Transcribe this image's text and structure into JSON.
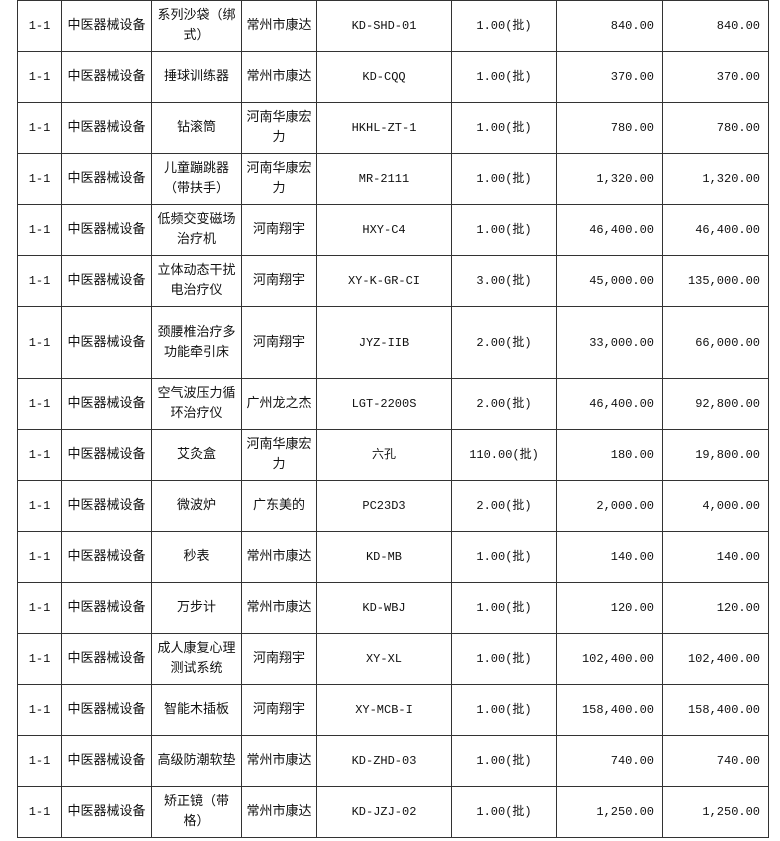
{
  "rows": [
    {
      "code": "1-1",
      "category": "中医器械设备",
      "name": "系列沙袋（绑式）",
      "brand": "常州市康达",
      "model": "KD-SHD-01",
      "qty": "1.00(批)",
      "price": "840.00",
      "total": "840.00"
    },
    {
      "code": "1-1",
      "category": "中医器械设备",
      "name": "捶球训练器",
      "brand": "常州市康达",
      "model": "KD-CQQ",
      "qty": "1.00(批)",
      "price": "370.00",
      "total": "370.00"
    },
    {
      "code": "1-1",
      "category": "中医器械设备",
      "name": "钻滚筒",
      "brand": "河南华康宏力",
      "model": "HKHL-ZT-1",
      "qty": "1.00(批)",
      "price": "780.00",
      "total": "780.00"
    },
    {
      "code": "1-1",
      "category": "中医器械设备",
      "name": "儿童蹦跳器（带扶手）",
      "brand": "河南华康宏力",
      "model": "MR-2111",
      "qty": "1.00(批)",
      "price": "1,320.00",
      "total": "1,320.00"
    },
    {
      "code": "1-1",
      "category": "中医器械设备",
      "name": "低频交变磁场治疗机",
      "brand": "河南翔宇",
      "model": "HXY-C4",
      "qty": "1.00(批)",
      "price": "46,400.00",
      "total": "46,400.00"
    },
    {
      "code": "1-1",
      "category": "中医器械设备",
      "name": "立体动态干扰电治疗仪",
      "brand": "河南翔宇",
      "model": "XY-K-GR-CI",
      "qty": "3.00(批)",
      "price": "45,000.00",
      "total": "135,000.00"
    },
    {
      "code": "1-1",
      "category": "中医器械设备",
      "name": "颈腰椎治疗多功能牵引床",
      "brand": "河南翔宇",
      "model": "JYZ-IIB",
      "qty": "2.00(批)",
      "price": "33,000.00",
      "total": "66,000.00"
    },
    {
      "code": "1-1",
      "category": "中医器械设备",
      "name": "空气波压力循环治疗仪",
      "brand": "广州龙之杰",
      "model": "LGT-2200S",
      "qty": "2.00(批)",
      "price": "46,400.00",
      "total": "92,800.00"
    },
    {
      "code": "1-1",
      "category": "中医器械设备",
      "name": "艾灸盒",
      "brand": "河南华康宏力",
      "model": "六孔",
      "qty": "110.00(批)",
      "price": "180.00",
      "total": "19,800.00"
    },
    {
      "code": "1-1",
      "category": "中医器械设备",
      "name": "微波炉",
      "brand": "广东美的",
      "model": "PC23D3",
      "qty": "2.00(批)",
      "price": "2,000.00",
      "total": "4,000.00"
    },
    {
      "code": "1-1",
      "category": "中医器械设备",
      "name": "秒表",
      "brand": "常州市康达",
      "model": "KD-MB",
      "qty": "1.00(批)",
      "price": "140.00",
      "total": "140.00"
    },
    {
      "code": "1-1",
      "category": "中医器械设备",
      "name": "万步计",
      "brand": "常州市康达",
      "model": "KD-WBJ",
      "qty": "1.00(批)",
      "price": "120.00",
      "total": "120.00"
    },
    {
      "code": "1-1",
      "category": "中医器械设备",
      "name": "成人康复心理测试系统",
      "brand": "河南翔宇",
      "model": "XY-XL",
      "qty": "1.00(批)",
      "price": "102,400.00",
      "total": "102,400.00"
    },
    {
      "code": "1-1",
      "category": "中医器械设备",
      "name": "智能木插板",
      "brand": "河南翔宇",
      "model": "XY-MCB-I",
      "qty": "1.00(批)",
      "price": "158,400.00",
      "total": "158,400.00"
    },
    {
      "code": "1-1",
      "category": "中医器械设备",
      "name": "高级防潮软垫",
      "brand": "常州市康达",
      "model": "KD-ZHD-03",
      "qty": "1.00(批)",
      "price": "740.00",
      "total": "740.00"
    },
    {
      "code": "1-1",
      "category": "中医器械设备",
      "name": "矫正镜（带格）",
      "brand": "常州市康达",
      "model": "KD-JZJ-02",
      "qty": "1.00(批)",
      "price": "1,250.00",
      "total": "1,250.00"
    }
  ]
}
